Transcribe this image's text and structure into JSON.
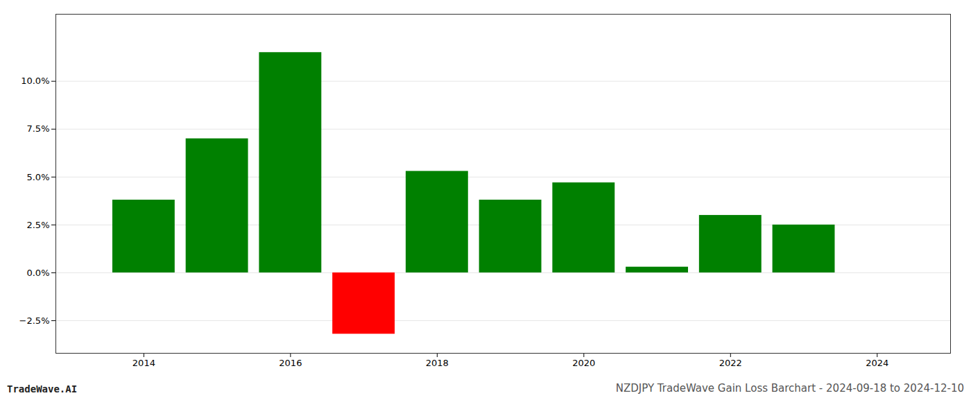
{
  "chart_data": {
    "type": "bar",
    "title": "NZDJPY TradeWave Gain Loss Barchart - 2024-09-18 to 2024-12-10",
    "annotations": [
      "TradeWave.AI"
    ],
    "x": [
      2014,
      2015,
      2016,
      2017,
      2018,
      2019,
      2020,
      2021,
      2022,
      2023
    ],
    "values": [
      3.8,
      7.0,
      11.5,
      -3.2,
      5.3,
      3.8,
      4.7,
      0.3,
      3.0,
      2.5
    ],
    "colors": [
      "#008000",
      "#008000",
      "#008000",
      "#ff0000",
      "#008000",
      "#008000",
      "#008000",
      "#008000",
      "#008000",
      "#008000"
    ],
    "xlim": [
      2012.8,
      2025.0
    ],
    "xticks": [
      2014,
      2016,
      2018,
      2020,
      2022,
      2024
    ],
    "ylim": [
      -4.2,
      13.5
    ],
    "yticks": [
      {
        "value": -2.5,
        "label": "−2.5%"
      },
      {
        "value": 0.0,
        "label": "0.0%"
      },
      {
        "value": 2.5,
        "label": "2.5%"
      },
      {
        "value": 5.0,
        "label": "5.0%"
      },
      {
        "value": 7.5,
        "label": "7.5%"
      },
      {
        "value": 10.0,
        "label": "10.0%"
      }
    ],
    "grid": true
  }
}
